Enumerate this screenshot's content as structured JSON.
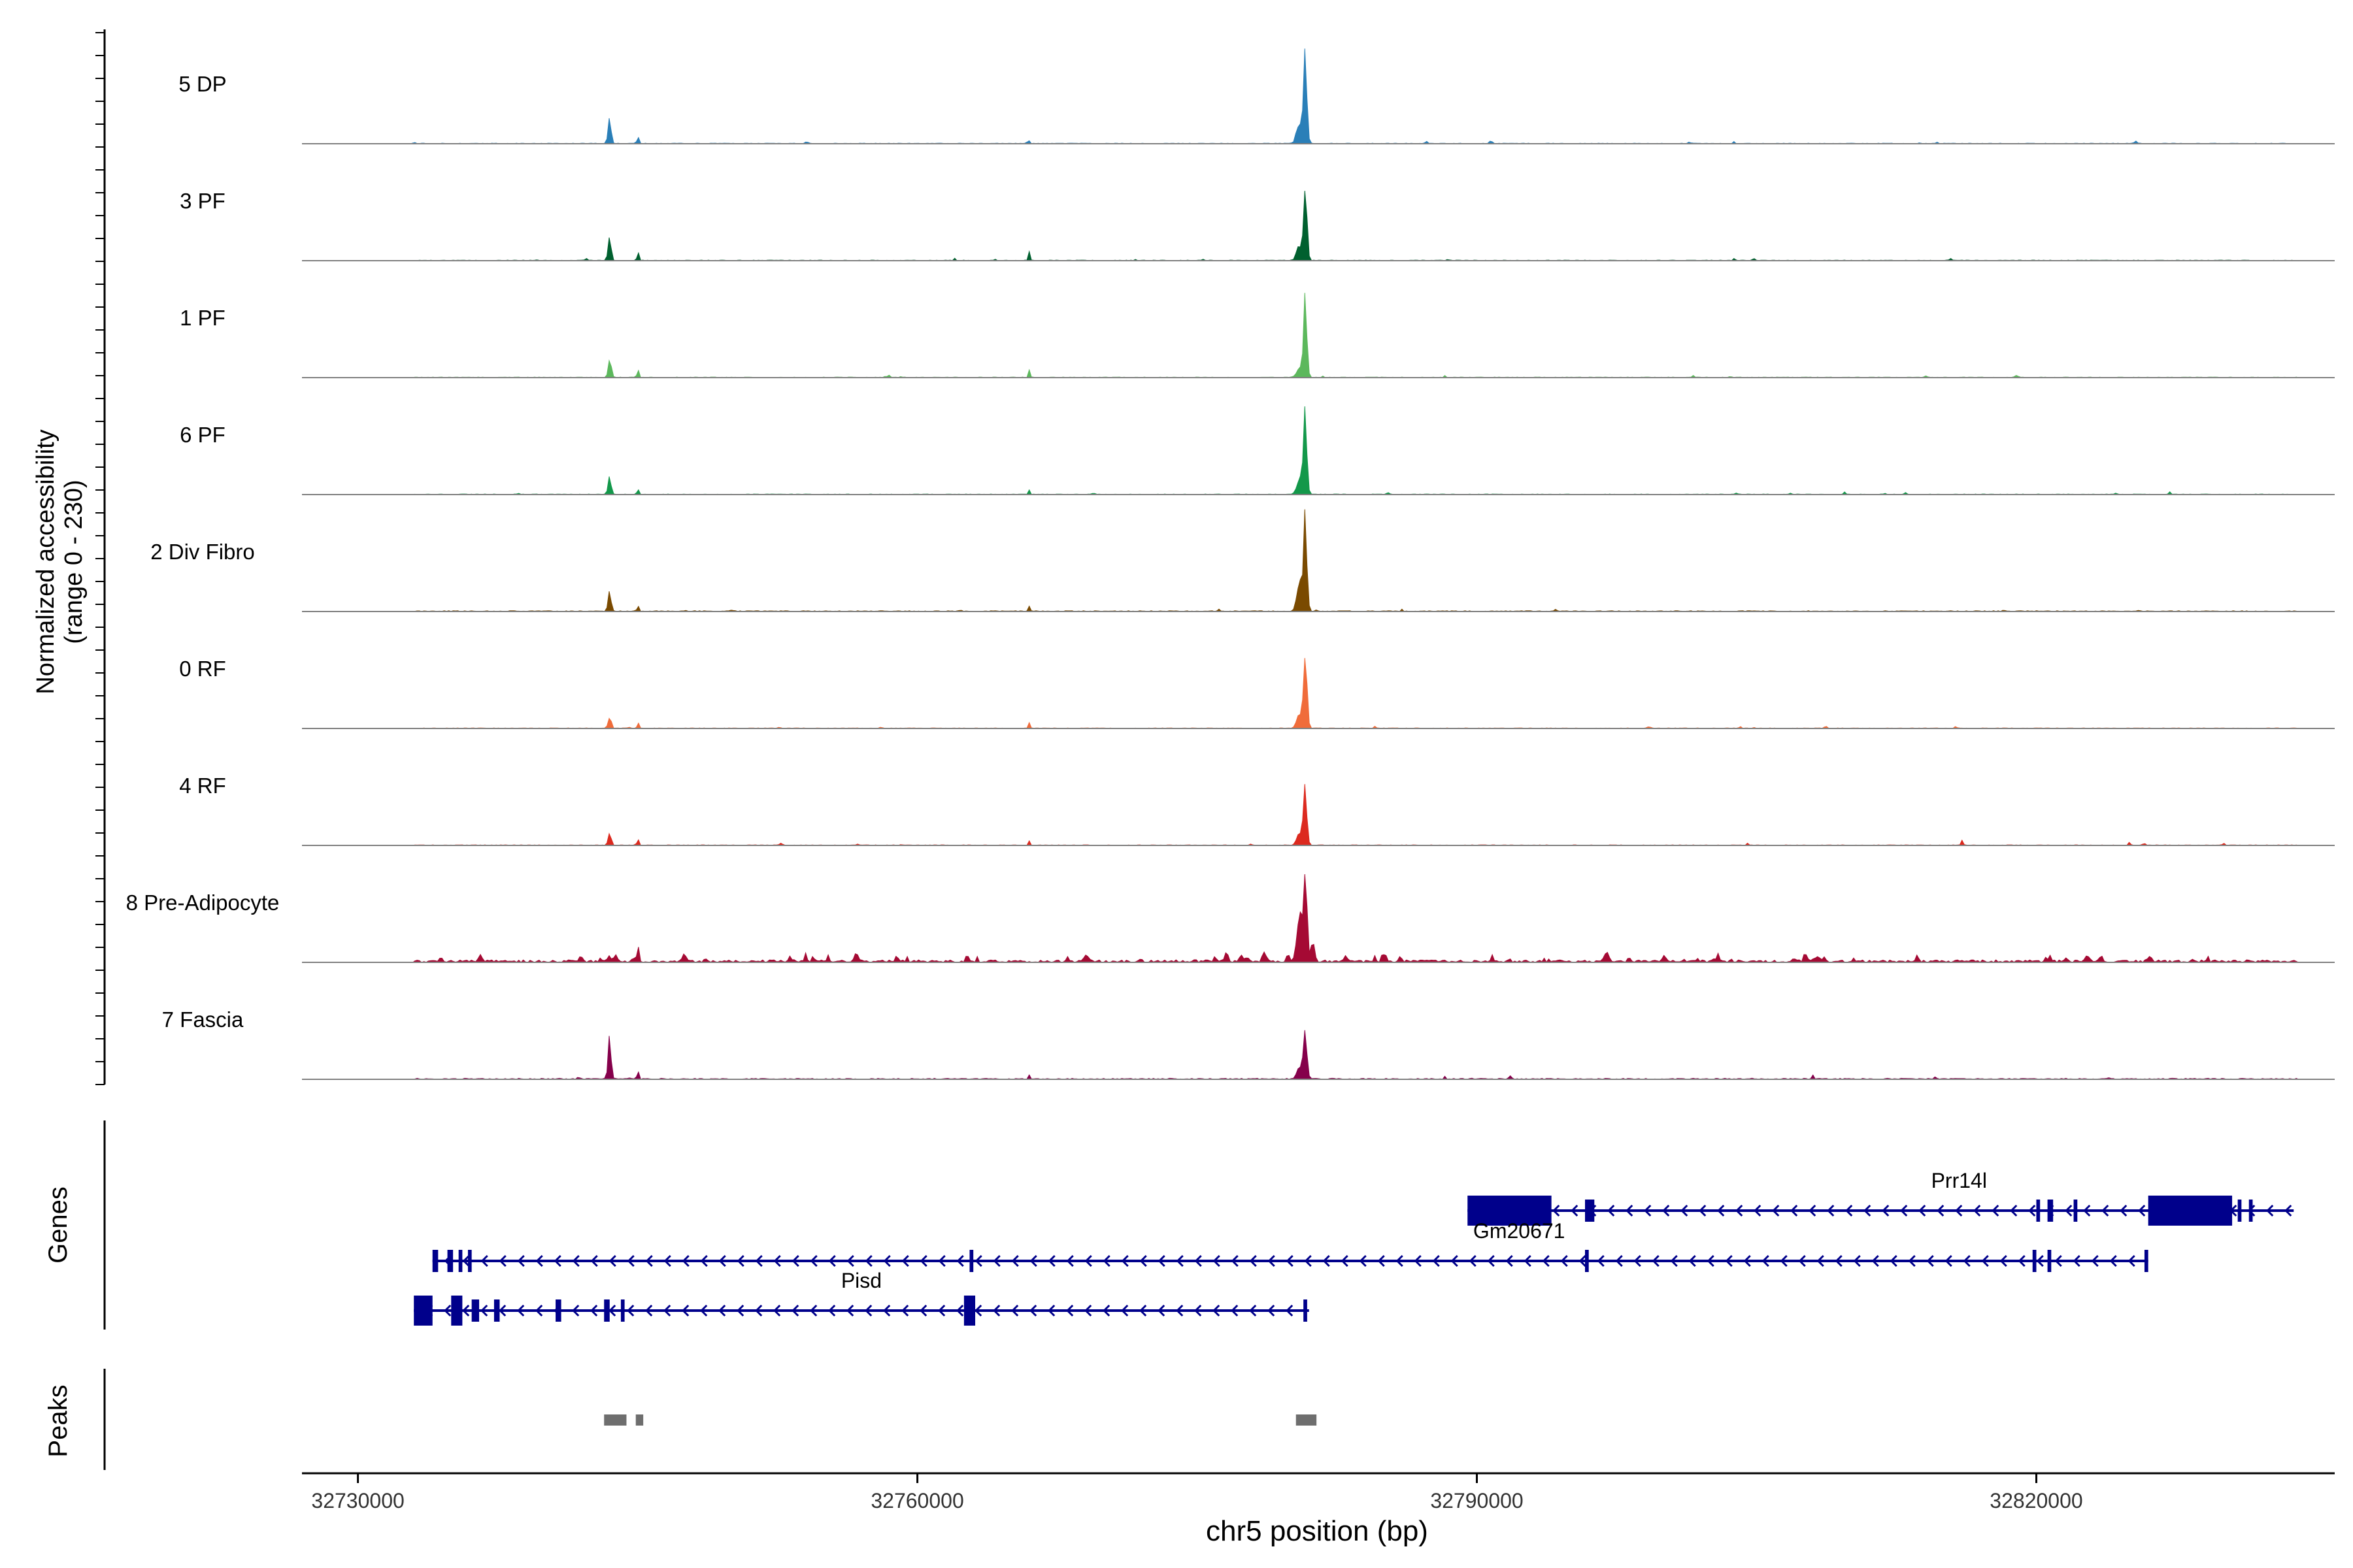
{
  "chart_data": {
    "type": "area",
    "title": "",
    "ylabel_line1": "Normalized accessibility",
    "ylabel_line2": "(range 0 - 230)",
    "ylim": [
      0,
      230
    ],
    "xlabel": "chr5 position (bp)",
    "xlim": [
      32727000,
      32836000
    ],
    "xticks": [
      32730000,
      32760000,
      32790000,
      32820000
    ],
    "xtick_labels": [
      "32730000",
      "32760000",
      "32790000",
      "32820000"
    ],
    "genes_label": "Genes",
    "peaks_label": "Peaks",
    "series": [
      {
        "name": "5 DP",
        "color": "#2a7fb8",
        "peaks": [
          [
            32743500,
            70,
            150
          ],
          [
            32745000,
            35,
            70
          ],
          [
            32766000,
            3,
            100
          ],
          [
            32780800,
            230,
            180
          ],
          [
            32780500,
            60,
            300
          ]
        ],
        "noise": 3,
        "spiky": false
      },
      {
        "name": "3 PF",
        "color": "#00602f",
        "peaks": [
          [
            32743500,
            55,
            160
          ],
          [
            32745000,
            40,
            70
          ],
          [
            32766000,
            20,
            80
          ],
          [
            32780800,
            180,
            180
          ],
          [
            32780500,
            40,
            300
          ]
        ],
        "noise": 3,
        "spiky": false
      },
      {
        "name": "1 PF",
        "color": "#5cb85c",
        "peaks": [
          [
            32743500,
            45,
            160
          ],
          [
            32745000,
            35,
            70
          ],
          [
            32766000,
            20,
            80
          ],
          [
            32780800,
            190,
            180
          ],
          [
            32780500,
            30,
            300
          ]
        ],
        "noise": 3,
        "spiky": false
      },
      {
        "name": "6 PF",
        "color": "#13984a",
        "peaks": [
          [
            32743500,
            50,
            160
          ],
          [
            32745000,
            35,
            70
          ],
          [
            32766000,
            10,
            80
          ],
          [
            32780800,
            200,
            180
          ],
          [
            32780500,
            40,
            300
          ]
        ],
        "noise": 3,
        "spiky": false
      },
      {
        "name": "2 Div Fibro",
        "color": "#7a4a00",
        "peaks": [
          [
            32743500,
            55,
            160
          ],
          [
            32745000,
            30,
            70
          ],
          [
            32766000,
            15,
            80
          ],
          [
            32780800,
            230,
            180
          ],
          [
            32780500,
            70,
            300
          ]
        ],
        "noise": 4,
        "spiky": false
      },
      {
        "name": "0 RF",
        "color": "#f06c3a",
        "peaks": [
          [
            32743500,
            30,
            160
          ],
          [
            32745000,
            25,
            70
          ],
          [
            32766000,
            15,
            80
          ],
          [
            32780800,
            190,
            180
          ],
          [
            32780500,
            40,
            300
          ]
        ],
        "noise": 3,
        "spiky": false
      },
      {
        "name": "4 RF",
        "color": "#dc2a1f",
        "peaks": [
          [
            32743500,
            30,
            160
          ],
          [
            32745000,
            30,
            70
          ],
          [
            32766000,
            10,
            80
          ],
          [
            32780800,
            150,
            180
          ],
          [
            32780500,
            35,
            300
          ]
        ],
        "noise": 3,
        "spiky": false
      },
      {
        "name": "8 Pre-Adipocyte",
        "color": "#a50a34",
        "peaks": [
          [
            32743500,
            15,
            160
          ],
          [
            32745000,
            80,
            70
          ],
          [
            32780800,
            230,
            180
          ],
          [
            32780500,
            120,
            300
          ],
          [
            32781200,
            50,
            200
          ]
        ],
        "noise": 12,
        "spiky": true
      },
      {
        "name": "7 Fascia",
        "color": "#85004b",
        "peaks": [
          [
            32743500,
            110,
            160
          ],
          [
            32745000,
            40,
            70
          ],
          [
            32766000,
            10,
            80
          ],
          [
            32780800,
            130,
            180
          ],
          [
            32780500,
            30,
            300
          ],
          [
            32808000,
            10,
            100
          ]
        ],
        "noise": 5,
        "spiky": false
      }
    ],
    "genes": [
      {
        "name": "Prr14l",
        "start": 32789500,
        "end": 32833800,
        "row": 0,
        "exons": [
          [
            32789500,
            32794000,
            1
          ],
          [
            32795800,
            32796300,
            0
          ],
          [
            32820000,
            32820200,
            0
          ],
          [
            32820600,
            32820900,
            0
          ],
          [
            32822000,
            32822200,
            0
          ],
          [
            32826000,
            32830500,
            1
          ],
          [
            32830800,
            32831000,
            0
          ],
          [
            32831400,
            32831600,
            0
          ]
        ]
      },
      {
        "name": "Gm20671",
        "start": 32734000,
        "end": 32826000,
        "row": 1,
        "exons": [
          [
            32734000,
            32734300,
            0
          ],
          [
            32734800,
            32735100,
            0
          ],
          [
            32735400,
            32735600,
            0
          ],
          [
            32735900,
            32736100,
            0
          ],
          [
            32762800,
            32763000,
            0
          ],
          [
            32795800,
            32796000,
            0
          ],
          [
            32819800,
            32820000,
            0
          ],
          [
            32820600,
            32820800,
            0
          ],
          [
            32825800,
            32826000,
            0
          ]
        ]
      },
      {
        "name": "Pisd",
        "start": 32733000,
        "end": 32781000,
        "row": 2,
        "exons": [
          [
            32733000,
            32734000,
            1
          ],
          [
            32735000,
            32735600,
            1
          ],
          [
            32736100,
            32736500,
            0
          ],
          [
            32737300,
            32737600,
            0
          ],
          [
            32740600,
            32740900,
            0
          ],
          [
            32743200,
            32743500,
            0
          ],
          [
            32744100,
            32744300,
            0
          ],
          [
            32762500,
            32763100,
            1
          ],
          [
            32780700,
            32780900,
            0
          ]
        ]
      }
    ],
    "peak_regions": [
      [
        32743200,
        32744400
      ],
      [
        32744900,
        32745300
      ],
      [
        32780300,
        32781400
      ]
    ]
  },
  "colors": {
    "gene": "#00008b",
    "baseline": "#808080",
    "peak_region": "#6e6e6e",
    "axis": "#000000"
  }
}
